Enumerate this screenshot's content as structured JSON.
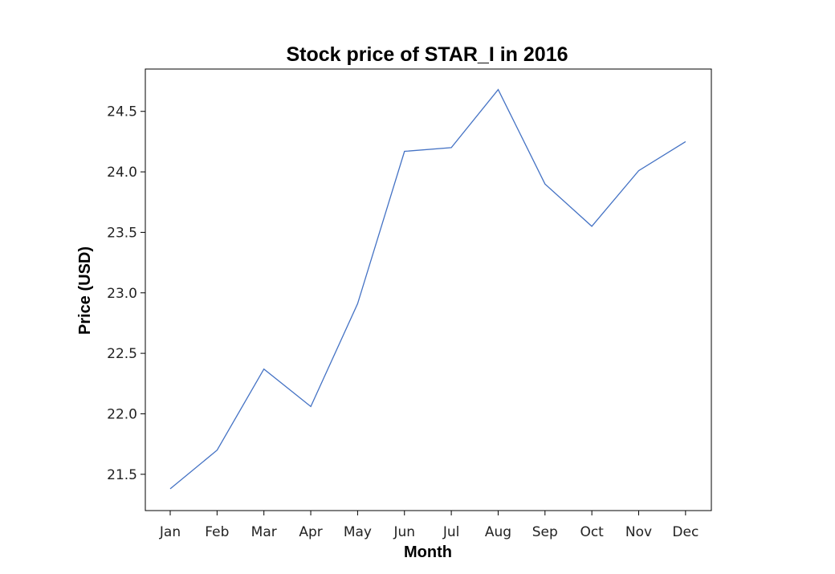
{
  "chart_data": {
    "type": "line",
    "title": "Stock price of STAR_I in 2016",
    "xlabel": "Month",
    "ylabel": "Price (USD)",
    "categories": [
      "Jan",
      "Feb",
      "Mar",
      "Apr",
      "May",
      "Jun",
      "Jul",
      "Aug",
      "Sep",
      "Oct",
      "Nov",
      "Dec"
    ],
    "series": [
      {
        "values": [
          21.38,
          21.7,
          22.37,
          22.06,
          22.91,
          24.17,
          24.2,
          24.68,
          23.9,
          23.55,
          24.01,
          24.25
        ],
        "color": "#4472c4"
      }
    ],
    "ylim": [
      21.2,
      24.85
    ],
    "yticks": [
      "21.5",
      "22.0",
      "22.5",
      "23.0",
      "23.5",
      "24.0",
      "24.5"
    ],
    "grid": false,
    "legend": "none"
  }
}
